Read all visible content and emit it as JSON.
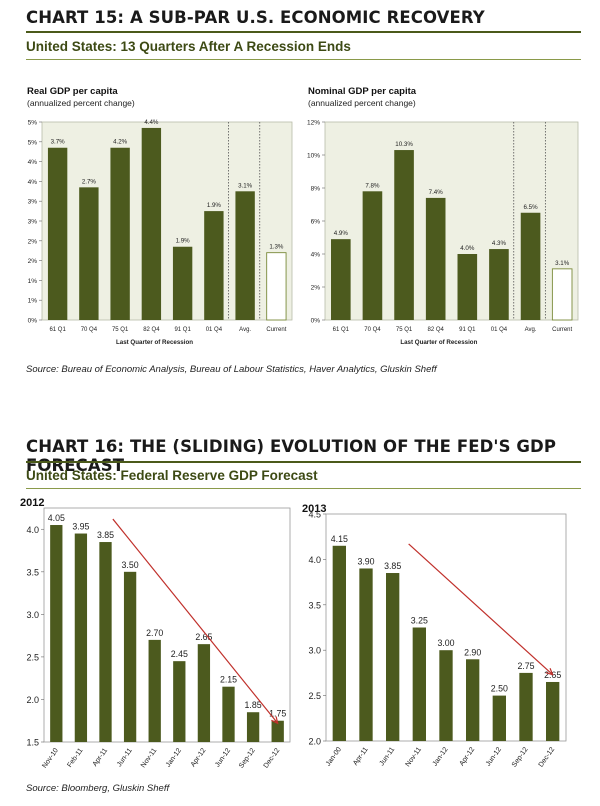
{
  "section1": {
    "title": "CHART 15: A SUB-PAR U.S. ECONOMIC RECOVERY",
    "subtitle": "United States: 13 Quarters After A Recession Ends",
    "source": "Source: Bureau of Economic Analysis, Bureau of Labour Statistics, Haver Analytics, Gluskin Sheff"
  },
  "section2": {
    "title": "CHART 16: THE (SLIDING) EVOLUTION OF THE FED'S GDP FORECAST",
    "subtitle": "United States: Federal Reserve GDP Forecast",
    "source": "Source: Bloomberg, Gluskin Sheff"
  },
  "colors": {
    "bar": "#4c5a1e",
    "outline": "#7a8a3a",
    "panel_bg": "#eef0e3",
    "arrow": "#c0302b",
    "rule": "#4b5a1a"
  },
  "chart_data": [
    {
      "type": "bar",
      "title": "Real GDP per capita",
      "subtitle": "(annualized percent change)",
      "xlabel": "Last Quarter of Recession",
      "categories": [
        "61 Q1",
        "70 Q4",
        "75 Q1",
        "82 Q4",
        "91 Q1",
        "01 Q4",
        "Avg.",
        "Current"
      ],
      "values": [
        3.7,
        2.7,
        4.2,
        4.4,
        1.9,
        1.9,
        3.1,
        1.3
      ],
      "labels": [
        "3.7%",
        "2.7%",
        "4.2%",
        "4.4%",
        "1.9%",
        "1.9%",
        "3.1%",
        "1.3%"
      ],
      "bar_heights": [
        4.35,
        3.35,
        4.35,
        4.85,
        1.85,
        2.75,
        3.25,
        1.7
      ],
      "ylim": [
        0,
        5
      ],
      "yticks": [
        0,
        0.5,
        1,
        1.5,
        2,
        2.5,
        3,
        3.5,
        4,
        4.5,
        5
      ],
      "yticklabels": [
        "0%",
        "1%",
        "1%",
        "2%",
        "2%",
        "3%",
        "3%",
        "4%",
        "4%",
        "5%",
        "5%"
      ],
      "hollow_last": true
    },
    {
      "type": "bar",
      "title": "Nominal GDP per capita",
      "subtitle": "(annualized percent change)",
      "xlabel": "Last Quarter of Recession",
      "categories": [
        "61 Q1",
        "70 Q4",
        "75 Q1",
        "82 Q4",
        "91 Q1",
        "01 Q4",
        "Avg.",
        "Current"
      ],
      "values": [
        4.9,
        7.8,
        10.3,
        7.4,
        4.0,
        4.3,
        6.5,
        3.1
      ],
      "labels": [
        "4.9%",
        "7.8%",
        "10.3%",
        "7.4%",
        "4.0%",
        "4.3%",
        "6.5%",
        "3.1%"
      ],
      "ylim": [
        0,
        12
      ],
      "yticks": [
        0,
        2,
        4,
        6,
        8,
        10,
        12
      ],
      "yticklabels": [
        "0%",
        "2%",
        "4%",
        "6%",
        "8%",
        "10%",
        "12%"
      ],
      "hollow_last": true
    },
    {
      "type": "bar",
      "title": "2012",
      "categories": [
        "Nov-10",
        "Feb-11",
        "Apr-11",
        "Jun-11",
        "Nov-11",
        "Jan-12",
        "Apr-12",
        "Jun-12",
        "Sep-12",
        "Dec-12"
      ],
      "values": [
        4.05,
        3.95,
        3.85,
        3.5,
        2.7,
        2.45,
        2.65,
        2.15,
        1.85,
        1.75
      ],
      "labels": [
        "4.05",
        "3.95",
        "3.85",
        "3.50",
        "2.70",
        "2.45",
        "2.65",
        "2.15",
        "1.85",
        "1.75"
      ],
      "ylim": [
        1.5,
        4.25
      ],
      "yticks": [
        1.5,
        2.0,
        2.5,
        3.0,
        3.5,
        4.0
      ],
      "yticklabels": [
        "1.5",
        "2.0",
        "2.5",
        "3.0",
        "3.5",
        "4.0"
      ]
    },
    {
      "type": "bar",
      "title": "2013",
      "categories": [
        "Jan-00",
        "Apr-11",
        "Jun-11",
        "Nov-11",
        "Jan-12",
        "Apr-12",
        "Jun-12",
        "Sep-12",
        "Dec-12"
      ],
      "values": [
        4.15,
        3.9,
        3.85,
        3.25,
        3.0,
        2.9,
        2.5,
        2.75,
        2.65
      ],
      "labels": [
        "4.15",
        "3.90",
        "3.85",
        "3.25",
        "3.00",
        "2.90",
        "2.50",
        "2.75",
        "2.65"
      ],
      "ylim": [
        2.0,
        4.5
      ],
      "yticks": [
        2.0,
        2.5,
        3.0,
        3.5,
        4.0,
        4.5
      ],
      "yticklabels": [
        "2.0",
        "2.5",
        "3.0",
        "3.5",
        "4.0",
        "4.5"
      ]
    }
  ]
}
